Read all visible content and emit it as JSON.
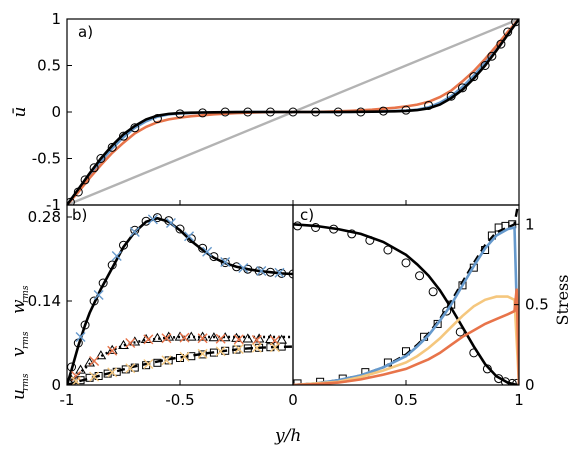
{
  "chart_data": [
    {
      "panel": "a)",
      "type": "line",
      "ylabel": "ū",
      "xlim": [
        -1,
        1
      ],
      "ylim": [
        -1,
        1
      ],
      "yticks": [
        "-1",
        "-0.5",
        "0",
        "0.5",
        "1"
      ],
      "series": [
        {
          "style": "gray-line",
          "color": "#b3b3b3",
          "x": [
            -1,
            1
          ],
          "y": [
            -1,
            1
          ]
        },
        {
          "style": "blue-line",
          "color": "#6699cc",
          "x": [
            -1,
            -0.95,
            -0.9,
            -0.85,
            -0.8,
            -0.75,
            -0.7,
            -0.65,
            -0.6,
            -0.55,
            -0.5,
            -0.45,
            -0.4,
            -0.35,
            -0.3,
            -0.25,
            -0.2,
            -0.15,
            -0.1,
            -0.05,
            0,
            0.05,
            0.1,
            0.15,
            0.2,
            0.25,
            0.3,
            0.35,
            0.4,
            0.45,
            0.5,
            0.55,
            0.6,
            0.65,
            0.7,
            0.75,
            0.8,
            0.85,
            0.9,
            0.95,
            1
          ],
          "y": [
            -1,
            -0.84,
            -0.68,
            -0.53,
            -0.39,
            -0.27,
            -0.17,
            -0.1,
            -0.05,
            -0.025,
            -0.015,
            -0.01,
            -0.006,
            -0.004,
            -0.003,
            -0.002,
            -0.001,
            0,
            0,
            0,
            0,
            0,
            0,
            0,
            0.001,
            0.002,
            0.003,
            0.004,
            0.006,
            0.01,
            0.015,
            0.025,
            0.05,
            0.1,
            0.17,
            0.27,
            0.39,
            0.53,
            0.68,
            0.84,
            1
          ]
        },
        {
          "style": "orange-line",
          "color": "#e8744a",
          "x": [
            -1,
            -0.95,
            -0.9,
            -0.85,
            -0.8,
            -0.75,
            -0.7,
            -0.65,
            -0.6,
            -0.55,
            -0.5,
            -0.45,
            -0.4,
            -0.35,
            -0.3,
            -0.25,
            -0.2,
            -0.15,
            -0.1,
            -0.05,
            0,
            0.05,
            0.1,
            0.15,
            0.2,
            0.25,
            0.3,
            0.35,
            0.4,
            0.45,
            0.5,
            0.55,
            0.6,
            0.65,
            0.7,
            0.75,
            0.8,
            0.85,
            0.9,
            0.95,
            1
          ],
          "y": [
            -1,
            -0.86,
            -0.71,
            -0.57,
            -0.44,
            -0.33,
            -0.23,
            -0.16,
            -0.11,
            -0.08,
            -0.06,
            -0.045,
            -0.035,
            -0.025,
            -0.018,
            -0.012,
            -0.007,
            -0.003,
            0,
            0,
            0,
            0,
            0,
            0.003,
            0.007,
            0.012,
            0.018,
            0.025,
            0.035,
            0.045,
            0.06,
            0.08,
            0.11,
            0.16,
            0.23,
            0.33,
            0.44,
            0.57,
            0.71,
            0.86,
            1
          ]
        },
        {
          "style": "black-line",
          "color": "#000000",
          "x": [
            -1,
            -0.95,
            -0.9,
            -0.85,
            -0.8,
            -0.75,
            -0.7,
            -0.65,
            -0.6,
            -0.55,
            -0.5,
            -0.45,
            -0.4,
            -0.35,
            -0.3,
            -0.25,
            -0.2,
            -0.15,
            -0.1,
            -0.05,
            0,
            0.05,
            0.1,
            0.15,
            0.2,
            0.25,
            0.3,
            0.35,
            0.4,
            0.45,
            0.5,
            0.55,
            0.6,
            0.65,
            0.7,
            0.75,
            0.8,
            0.85,
            0.9,
            0.95,
            1
          ],
          "y": [
            -1,
            -0.83,
            -0.66,
            -0.5,
            -0.36,
            -0.24,
            -0.15,
            -0.08,
            -0.04,
            -0.02,
            -0.012,
            -0.008,
            -0.005,
            -0.003,
            -0.002,
            -0.001,
            0,
            0,
            0,
            0,
            0,
            0,
            0,
            0,
            0,
            0.001,
            0.002,
            0.003,
            0.005,
            0.008,
            0.012,
            0.02,
            0.04,
            0.08,
            0.15,
            0.24,
            0.36,
            0.5,
            0.66,
            0.83,
            1
          ]
        },
        {
          "style": "circles",
          "color": "#000000",
          "x": [
            -0.985,
            -0.95,
            -0.92,
            -0.88,
            -0.85,
            -0.8,
            -0.75,
            -0.7,
            -0.6,
            -0.5,
            -0.4,
            -0.3,
            -0.2,
            -0.1,
            0,
            0.1,
            0.2,
            0.3,
            0.4,
            0.5,
            0.6,
            0.7,
            0.75,
            0.8,
            0.85,
            0.88,
            0.92,
            0.95,
            0.985
          ],
          "y": [
            -0.97,
            -0.86,
            -0.73,
            -0.6,
            -0.5,
            -0.38,
            -0.26,
            -0.17,
            -0.07,
            -0.02,
            -0.01,
            0,
            0,
            0,
            0,
            0,
            0,
            0,
            0.01,
            0.02,
            0.07,
            0.17,
            0.26,
            0.38,
            0.5,
            0.6,
            0.73,
            0.86,
            0.97
          ]
        }
      ]
    },
    {
      "panel": "b)",
      "type": "line",
      "ylabel": "u_rms v_rms w_rms",
      "xlim": [
        -1,
        0
      ],
      "ylim": [
        0,
        0.3
      ],
      "xticks": [
        "-1",
        "-0.5",
        "0"
      ],
      "yticks": [
        "0",
        "0.14",
        "0.28"
      ],
      "series": [
        {
          "style": "u-line",
          "color": "#000000",
          "x": [
            -1,
            -0.98,
            -0.95,
            -0.92,
            -0.9,
            -0.85,
            -0.8,
            -0.75,
            -0.7,
            -0.65,
            -0.6,
            -0.55,
            -0.5,
            -0.45,
            -0.4,
            -0.35,
            -0.3,
            -0.25,
            -0.2,
            -0.15,
            -0.1,
            -0.05,
            0
          ],
          "y": [
            0,
            0.025,
            0.065,
            0.1,
            0.12,
            0.16,
            0.195,
            0.23,
            0.255,
            0.272,
            0.278,
            0.272,
            0.258,
            0.24,
            0.225,
            0.212,
            0.203,
            0.197,
            0.193,
            0.19,
            0.188,
            0.186,
            0.185
          ]
        },
        {
          "style": "u-circles",
          "color": "#000000",
          "x": [
            -0.98,
            -0.95,
            -0.92,
            -0.88,
            -0.84,
            -0.8,
            -0.75,
            -0.7,
            -0.65,
            -0.6,
            -0.55,
            -0.5,
            -0.45,
            -0.4,
            -0.35,
            -0.3,
            -0.25,
            -0.2,
            -0.15,
            -0.1,
            -0.05,
            0
          ],
          "y": [
            0.03,
            0.07,
            0.1,
            0.14,
            0.17,
            0.2,
            0.233,
            0.258,
            0.273,
            0.279,
            0.274,
            0.26,
            0.244,
            0.228,
            0.214,
            0.204,
            0.197,
            0.193,
            0.19,
            0.188,
            0.186,
            0.185
          ]
        },
        {
          "style": "u-crosses",
          "color": "#6699cc",
          "x": [
            -0.94,
            -0.86,
            -0.78,
            -0.7,
            -0.62,
            -0.54,
            -0.46,
            -0.38,
            -0.3,
            -0.22,
            -0.14,
            -0.06
          ],
          "y": [
            0.08,
            0.15,
            0.215,
            0.255,
            0.276,
            0.27,
            0.248,
            0.222,
            0.205,
            0.195,
            0.19,
            0.187
          ]
        },
        {
          "style": "v-dotted",
          "color": "#000000",
          "x": [
            -1,
            -0.95,
            -0.9,
            -0.85,
            -0.8,
            -0.75,
            -0.7,
            -0.65,
            -0.6,
            -0.55,
            -0.5,
            -0.4,
            -0.3,
            -0.2,
            -0.1,
            0
          ],
          "y": [
            0,
            0.018,
            0.035,
            0.048,
            0.058,
            0.066,
            0.071,
            0.075,
            0.077,
            0.079,
            0.08,
            0.08,
            0.08,
            0.08,
            0.08,
            0.08
          ]
        },
        {
          "style": "v-triangles",
          "color": "#000000",
          "x": [
            -0.98,
            -0.94,
            -0.9,
            -0.85,
            -0.8,
            -0.75,
            -0.7,
            -0.65,
            -0.6,
            -0.55,
            -0.5,
            -0.45,
            -0.4,
            -0.35,
            -0.3,
            -0.25,
            -0.2,
            -0.15,
            -0.1,
            -0.05
          ],
          "y": [
            0.008,
            0.025,
            0.037,
            0.049,
            0.058,
            0.066,
            0.072,
            0.076,
            0.078,
            0.08,
            0.08,
            0.08,
            0.08,
            0.079,
            0.079,
            0.078,
            0.077,
            0.077,
            0.076,
            0.075
          ]
        },
        {
          "style": "v-crosses",
          "color": "#e8744a",
          "x": [
            -0.96,
            -0.88,
            -0.8,
            -0.72,
            -0.64,
            -0.56,
            -0.48,
            -0.4,
            -0.32,
            -0.24,
            -0.16,
            -0.08
          ],
          "y": [
            0.015,
            0.04,
            0.057,
            0.07,
            0.076,
            0.078,
            0.079,
            0.078,
            0.077,
            0.076,
            0.075,
            0.074
          ]
        },
        {
          "style": "w-dashed",
          "color": "#000000",
          "x": [
            -1,
            -0.95,
            -0.9,
            -0.85,
            -0.8,
            -0.75,
            -0.7,
            -0.65,
            -0.6,
            -0.55,
            -0.5,
            -0.4,
            -0.3,
            -0.2,
            -0.1,
            0
          ],
          "y": [
            0,
            0.006,
            0.011,
            0.016,
            0.021,
            0.026,
            0.031,
            0.035,
            0.039,
            0.043,
            0.046,
            0.052,
            0.057,
            0.061,
            0.063,
            0.064
          ]
        },
        {
          "style": "w-squares",
          "color": "#000000",
          "x": [
            -0.98,
            -0.94,
            -0.9,
            -0.86,
            -0.82,
            -0.78,
            -0.74,
            -0.7,
            -0.65,
            -0.6,
            -0.55,
            -0.5,
            -0.45,
            -0.4,
            -0.35,
            -0.3,
            -0.25,
            -0.2,
            -0.15,
            -0.1,
            -0.05
          ],
          "y": [
            0.004,
            0.008,
            0.012,
            0.015,
            0.019,
            0.022,
            0.026,
            0.029,
            0.033,
            0.037,
            0.041,
            0.045,
            0.048,
            0.051,
            0.054,
            0.057,
            0.059,
            0.061,
            0.062,
            0.063,
            0.064
          ]
        },
        {
          "style": "w-crosses",
          "color": "#f5c77e",
          "x": [
            -0.96,
            -0.88,
            -0.8,
            -0.72,
            -0.64,
            -0.56,
            -0.48,
            -0.4,
            -0.32,
            -0.24,
            -0.16,
            -0.08
          ],
          "y": [
            0.006,
            0.014,
            0.021,
            0.028,
            0.035,
            0.041,
            0.047,
            0.052,
            0.056,
            0.06,
            0.062,
            0.063
          ]
        }
      ]
    },
    {
      "panel": "c)",
      "type": "line",
      "ylabel": "Stress",
      "xlim": [
        0,
        1
      ],
      "ylim": [
        0,
        1.12
      ],
      "xticks": [
        "0",
        "0.5",
        "1"
      ],
      "yticks": [
        "0",
        "0.5",
        "1"
      ],
      "series": [
        {
          "style": "viscous-line",
          "color": "#000000",
          "x": [
            0,
            0.1,
            0.2,
            0.3,
            0.4,
            0.5,
            0.55,
            0.6,
            0.65,
            0.7,
            0.75,
            0.8,
            0.85,
            0.9,
            0.95,
            0.98,
            1
          ],
          "y": [
            1,
            0.99,
            0.97,
            0.94,
            0.89,
            0.81,
            0.75,
            0.68,
            0.59,
            0.48,
            0.36,
            0.24,
            0.13,
            0.055,
            0.015,
            0.004,
            0
          ]
        },
        {
          "style": "viscous-circles",
          "color": "#000000",
          "x": [
            0.02,
            0.1,
            0.18,
            0.26,
            0.34,
            0.42,
            0.5,
            0.56,
            0.62,
            0.68,
            0.74,
            0.8,
            0.86,
            0.91,
            0.94,
            0.97,
            0.99
          ],
          "y": [
            0.99,
            0.98,
            0.97,
            0.94,
            0.9,
            0.84,
            0.76,
            0.68,
            0.58,
            0.46,
            0.33,
            0.2,
            0.1,
            0.04,
            0.02,
            0.01,
            0.01
          ]
        },
        {
          "style": "reynolds-dashed",
          "color": "#000000",
          "x": [
            0,
            0.1,
            0.2,
            0.3,
            0.4,
            0.5,
            0.55,
            0.6,
            0.65,
            0.7,
            0.75,
            0.8,
            0.85,
            0.9,
            0.95,
            0.98,
            0.995,
            1
          ],
          "y": [
            0,
            0.01,
            0.03,
            0.06,
            0.11,
            0.19,
            0.25,
            0.32,
            0.41,
            0.52,
            0.64,
            0.76,
            0.87,
            0.95,
            0.98,
            1,
            1.12,
            1.12
          ]
        },
        {
          "style": "reynolds-squares",
          "color": "#000000",
          "x": [
            0.02,
            0.12,
            0.22,
            0.32,
            0.42,
            0.5,
            0.58,
            0.64,
            0.7,
            0.75,
            0.8,
            0.85,
            0.88,
            0.91,
            0.94,
            0.97
          ],
          "y": [
            0.01,
            0.02,
            0.04,
            0.08,
            0.14,
            0.21,
            0.3,
            0.38,
            0.5,
            0.62,
            0.73,
            0.84,
            0.93,
            0.98,
            0.99,
            1
          ]
        },
        {
          "style": "blue-line",
          "color": "#6699cc",
          "x": [
            0,
            0.1,
            0.2,
            0.3,
            0.4,
            0.5,
            0.55,
            0.6,
            0.65,
            0.7,
            0.75,
            0.8,
            0.85,
            0.9,
            0.95,
            0.98,
            1
          ],
          "y": [
            0,
            0.01,
            0.03,
            0.06,
            0.11,
            0.18,
            0.24,
            0.31,
            0.4,
            0.5,
            0.62,
            0.74,
            0.85,
            0.93,
            0.97,
            0.98,
            0.0
          ]
        },
        {
          "style": "light-orange-line",
          "color": "#f5c77e",
          "x": [
            0,
            0.1,
            0.2,
            0.3,
            0.4,
            0.5,
            0.55,
            0.6,
            0.65,
            0.7,
            0.75,
            0.8,
            0.85,
            0.9,
            0.95,
            0.98,
            1
          ],
          "y": [
            0,
            0.01,
            0.02,
            0.05,
            0.09,
            0.14,
            0.18,
            0.23,
            0.29,
            0.36,
            0.43,
            0.49,
            0.53,
            0.55,
            0.55,
            0.53,
            0.0
          ]
        },
        {
          "style": "orange-line",
          "color": "#e8744a",
          "x": [
            0,
            0.1,
            0.2,
            0.3,
            0.4,
            0.5,
            0.55,
            0.6,
            0.65,
            0.7,
            0.75,
            0.8,
            0.85,
            0.9,
            0.95,
            0.98,
            0.99,
            1
          ],
          "y": [
            0,
            0.005,
            0.015,
            0.035,
            0.065,
            0.1,
            0.13,
            0.16,
            0.2,
            0.25,
            0.3,
            0.34,
            0.38,
            0.41,
            0.44,
            0.46,
            0.6,
            0.0
          ]
        }
      ]
    }
  ],
  "x_axis_label": "y/h",
  "panel_b_ylabel": {
    "u": "u",
    "v": "v",
    "w": "w",
    "sub": "rms"
  }
}
